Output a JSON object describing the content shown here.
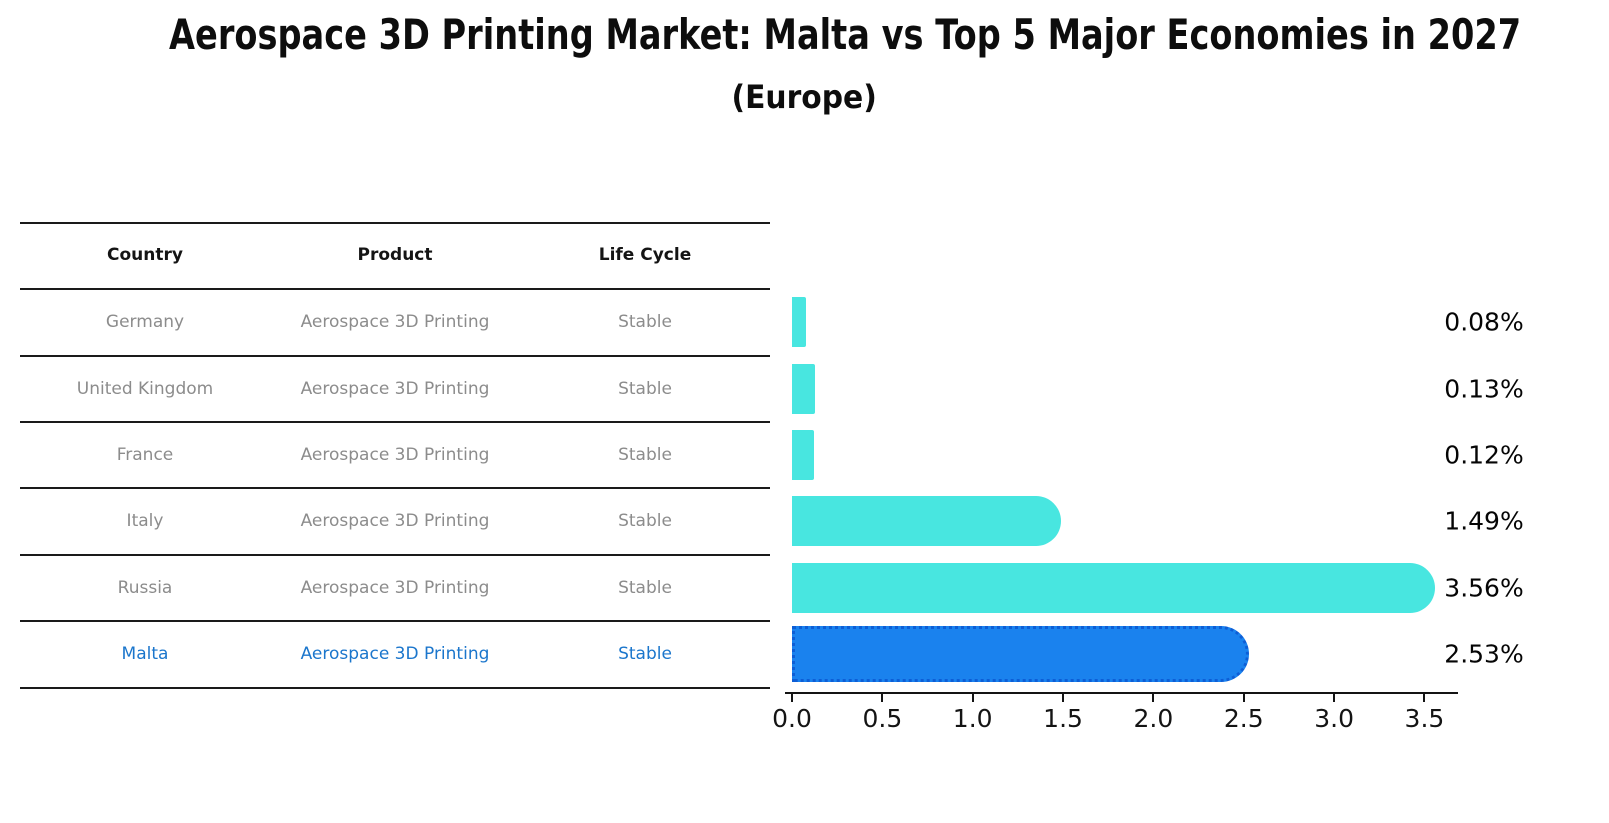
{
  "header": {
    "title": "Aerospace 3D Printing Market: Malta vs Top 5 Major Economies in 2027",
    "subtitle": "(Europe)"
  },
  "table": {
    "columns": [
      "Country",
      "Product",
      "Life Cycle"
    ],
    "rows": [
      {
        "country": "Germany",
        "product": "Aerospace 3D Printing",
        "life_cycle": "Stable",
        "highlighted": false
      },
      {
        "country": "United Kingdom",
        "product": "Aerospace 3D Printing",
        "life_cycle": "Stable",
        "highlighted": false
      },
      {
        "country": "France",
        "product": "Aerospace 3D Printing",
        "life_cycle": "Stable",
        "highlighted": false
      },
      {
        "country": "Italy",
        "product": "Aerospace 3D Printing",
        "life_cycle": "Stable",
        "highlighted": false
      },
      {
        "country": "Russia",
        "product": "Aerospace 3D Printing",
        "life_cycle": "Stable",
        "highlighted": false
      },
      {
        "country": "Malta",
        "product": "Aerospace 3D Printing",
        "life_cycle": "Stable",
        "highlighted": true
      }
    ]
  },
  "chart_data": {
    "type": "bar",
    "orientation": "horizontal",
    "title": "Aerospace 3D Printing Market: Malta vs Top 5 Major Economies in 2027 (Europe)",
    "categories": [
      "Germany",
      "United Kingdom",
      "France",
      "Italy",
      "Russia",
      "Malta"
    ],
    "values": [
      0.08,
      0.13,
      0.12,
      1.49,
      3.56,
      2.53
    ],
    "value_labels": [
      "0.08%",
      "0.13%",
      "0.12%",
      "1.49%",
      "3.56%",
      "2.53%"
    ],
    "x_ticks": [
      "0.0",
      "0.5",
      "1.0",
      "1.5",
      "2.0",
      "2.5",
      "3.0",
      "3.5"
    ],
    "xlim": [
      0,
      3.7
    ],
    "grid": false,
    "legend": false,
    "highlight_category": "Malta",
    "colors": {
      "default_bar": "#48e6e0",
      "highlight_bar": "#1a82ee",
      "highlight_border": "#0d5ed6",
      "row_text": "#8c8c8c",
      "highlight_text": "#1b76cc"
    }
  }
}
